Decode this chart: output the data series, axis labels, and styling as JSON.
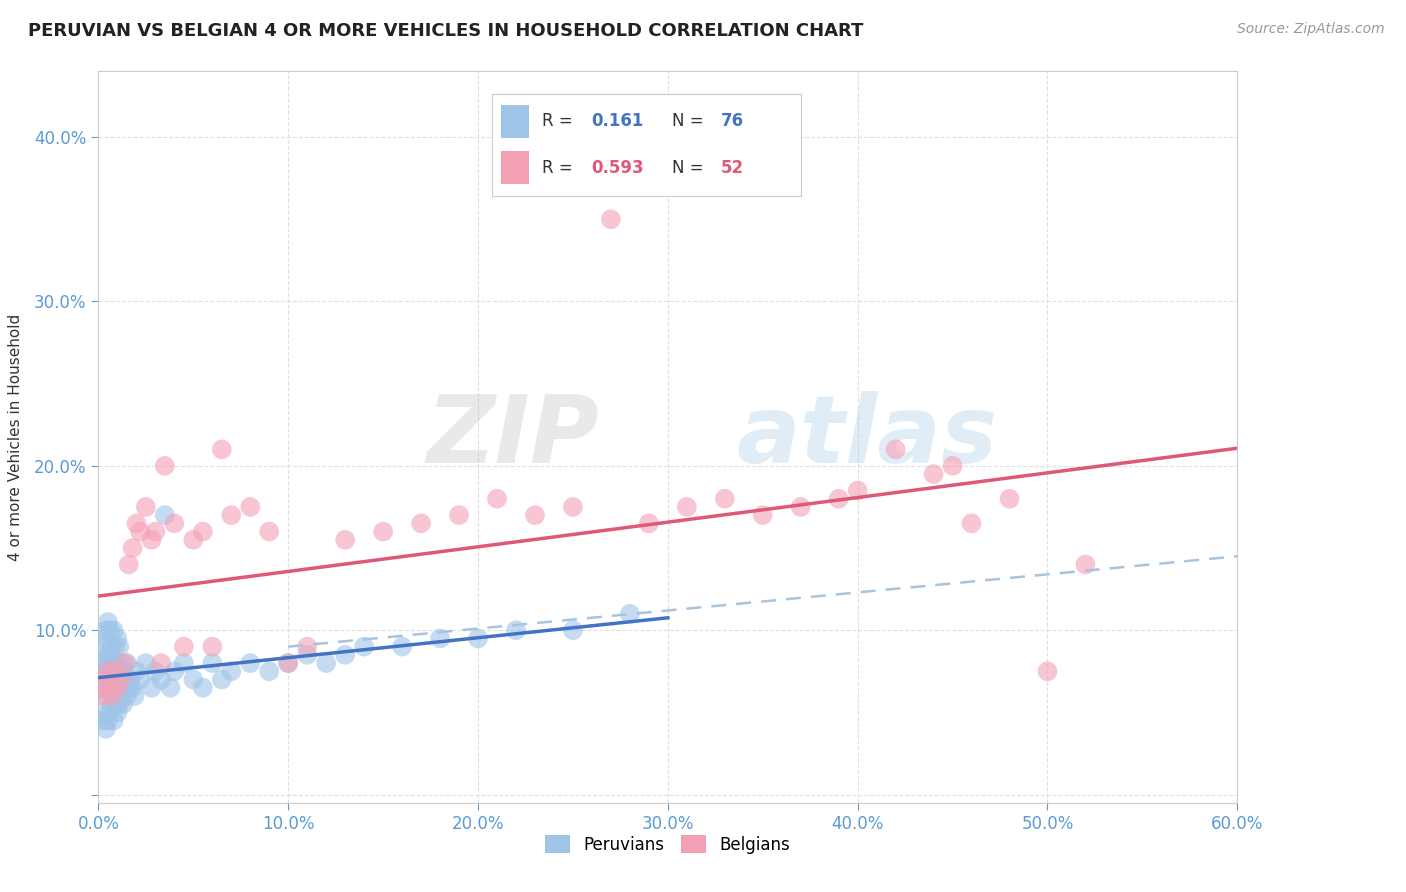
{
  "title": "PERUVIAN VS BELGIAN 4 OR MORE VEHICLES IN HOUSEHOLD CORRELATION CHART",
  "source": "Source: ZipAtlas.com",
  "ylabel": "4 or more Vehicles in Household",
  "xlim": [
    0.0,
    0.6
  ],
  "ylim": [
    -0.005,
    0.44
  ],
  "xticks": [
    0.0,
    0.1,
    0.2,
    0.3,
    0.4,
    0.5,
    0.6
  ],
  "yticks": [
    0.0,
    0.1,
    0.2,
    0.3,
    0.4
  ],
  "xtick_labels": [
    "0.0%",
    "10.0%",
    "20.0%",
    "30.0%",
    "40.0%",
    "50.0%",
    "60.0%"
  ],
  "ytick_labels": [
    "",
    "10.0%",
    "20.0%",
    "30.0%",
    "40.0%"
  ],
  "peruvian_color": "#9EC4E8",
  "belgian_color": "#F4A0B4",
  "peruvian_line_color": "#4472C4",
  "belgian_line_color": "#E05878",
  "dashed_line_color": "#A8C4DC",
  "R_peruvian": 0.161,
  "N_peruvian": 76,
  "R_belgian": 0.593,
  "N_belgian": 52,
  "background_color": "#FFFFFF",
  "watermark_zip": "ZIP",
  "watermark_atlas": "atlas",
  "legend_peruvian": "Peruvians",
  "legend_belgian": "Belgians",
  "peruvian_R_color": "#4472C4",
  "peruvian_N_color": "#4472C4",
  "belgian_R_color": "#E05878",
  "belgian_N_color": "#E05878",
  "grid_color": "#DDDDDD",
  "tick_label_color": "#5B9BD5",
  "ylabel_color": "#333333",
  "peruvians_x": [
    0.001,
    0.001,
    0.002,
    0.002,
    0.002,
    0.003,
    0.003,
    0.003,
    0.004,
    0.004,
    0.004,
    0.004,
    0.005,
    0.005,
    0.005,
    0.005,
    0.006,
    0.006,
    0.006,
    0.006,
    0.007,
    0.007,
    0.007,
    0.008,
    0.008,
    0.008,
    0.008,
    0.009,
    0.009,
    0.009,
    0.01,
    0.01,
    0.01,
    0.01,
    0.011,
    0.011,
    0.011,
    0.012,
    0.012,
    0.013,
    0.013,
    0.014,
    0.015,
    0.015,
    0.016,
    0.017,
    0.018,
    0.019,
    0.02,
    0.022,
    0.025,
    0.028,
    0.03,
    0.033,
    0.035,
    0.038,
    0.04,
    0.045,
    0.05,
    0.055,
    0.06,
    0.065,
    0.07,
    0.08,
    0.09,
    0.1,
    0.11,
    0.12,
    0.13,
    0.14,
    0.16,
    0.18,
    0.2,
    0.22,
    0.25,
    0.28
  ],
  "peruvians_y": [
    0.065,
    0.08,
    0.045,
    0.07,
    0.09,
    0.05,
    0.075,
    0.095,
    0.04,
    0.06,
    0.08,
    0.1,
    0.045,
    0.065,
    0.085,
    0.105,
    0.05,
    0.07,
    0.085,
    0.1,
    0.055,
    0.075,
    0.09,
    0.045,
    0.065,
    0.08,
    0.1,
    0.055,
    0.075,
    0.09,
    0.05,
    0.065,
    0.08,
    0.095,
    0.055,
    0.07,
    0.09,
    0.06,
    0.08,
    0.055,
    0.075,
    0.07,
    0.06,
    0.08,
    0.065,
    0.07,
    0.065,
    0.06,
    0.075,
    0.07,
    0.08,
    0.065,
    0.075,
    0.07,
    0.17,
    0.065,
    0.075,
    0.08,
    0.07,
    0.065,
    0.08,
    0.07,
    0.075,
    0.08,
    0.075,
    0.08,
    0.085,
    0.08,
    0.085,
    0.09,
    0.09,
    0.095,
    0.095,
    0.1,
    0.1,
    0.11
  ],
  "belgians_x": [
    0.002,
    0.003,
    0.004,
    0.005,
    0.006,
    0.007,
    0.008,
    0.01,
    0.012,
    0.014,
    0.016,
    0.018,
    0.02,
    0.022,
    0.025,
    0.028,
    0.03,
    0.033,
    0.035,
    0.04,
    0.045,
    0.05,
    0.055,
    0.06,
    0.065,
    0.07,
    0.08,
    0.09,
    0.1,
    0.11,
    0.13,
    0.15,
    0.17,
    0.19,
    0.21,
    0.23,
    0.25,
    0.27,
    0.29,
    0.31,
    0.33,
    0.35,
    0.37,
    0.39,
    0.4,
    0.42,
    0.44,
    0.45,
    0.46,
    0.48,
    0.5,
    0.52
  ],
  "belgians_y": [
    0.065,
    0.06,
    0.07,
    0.075,
    0.065,
    0.06,
    0.075,
    0.065,
    0.07,
    0.08,
    0.14,
    0.15,
    0.165,
    0.16,
    0.175,
    0.155,
    0.16,
    0.08,
    0.2,
    0.165,
    0.09,
    0.155,
    0.16,
    0.09,
    0.21,
    0.17,
    0.175,
    0.16,
    0.08,
    0.09,
    0.155,
    0.16,
    0.165,
    0.17,
    0.18,
    0.17,
    0.175,
    0.35,
    0.165,
    0.175,
    0.18,
    0.17,
    0.175,
    0.18,
    0.185,
    0.21,
    0.195,
    0.2,
    0.165,
    0.18,
    0.075,
    0.14
  ]
}
